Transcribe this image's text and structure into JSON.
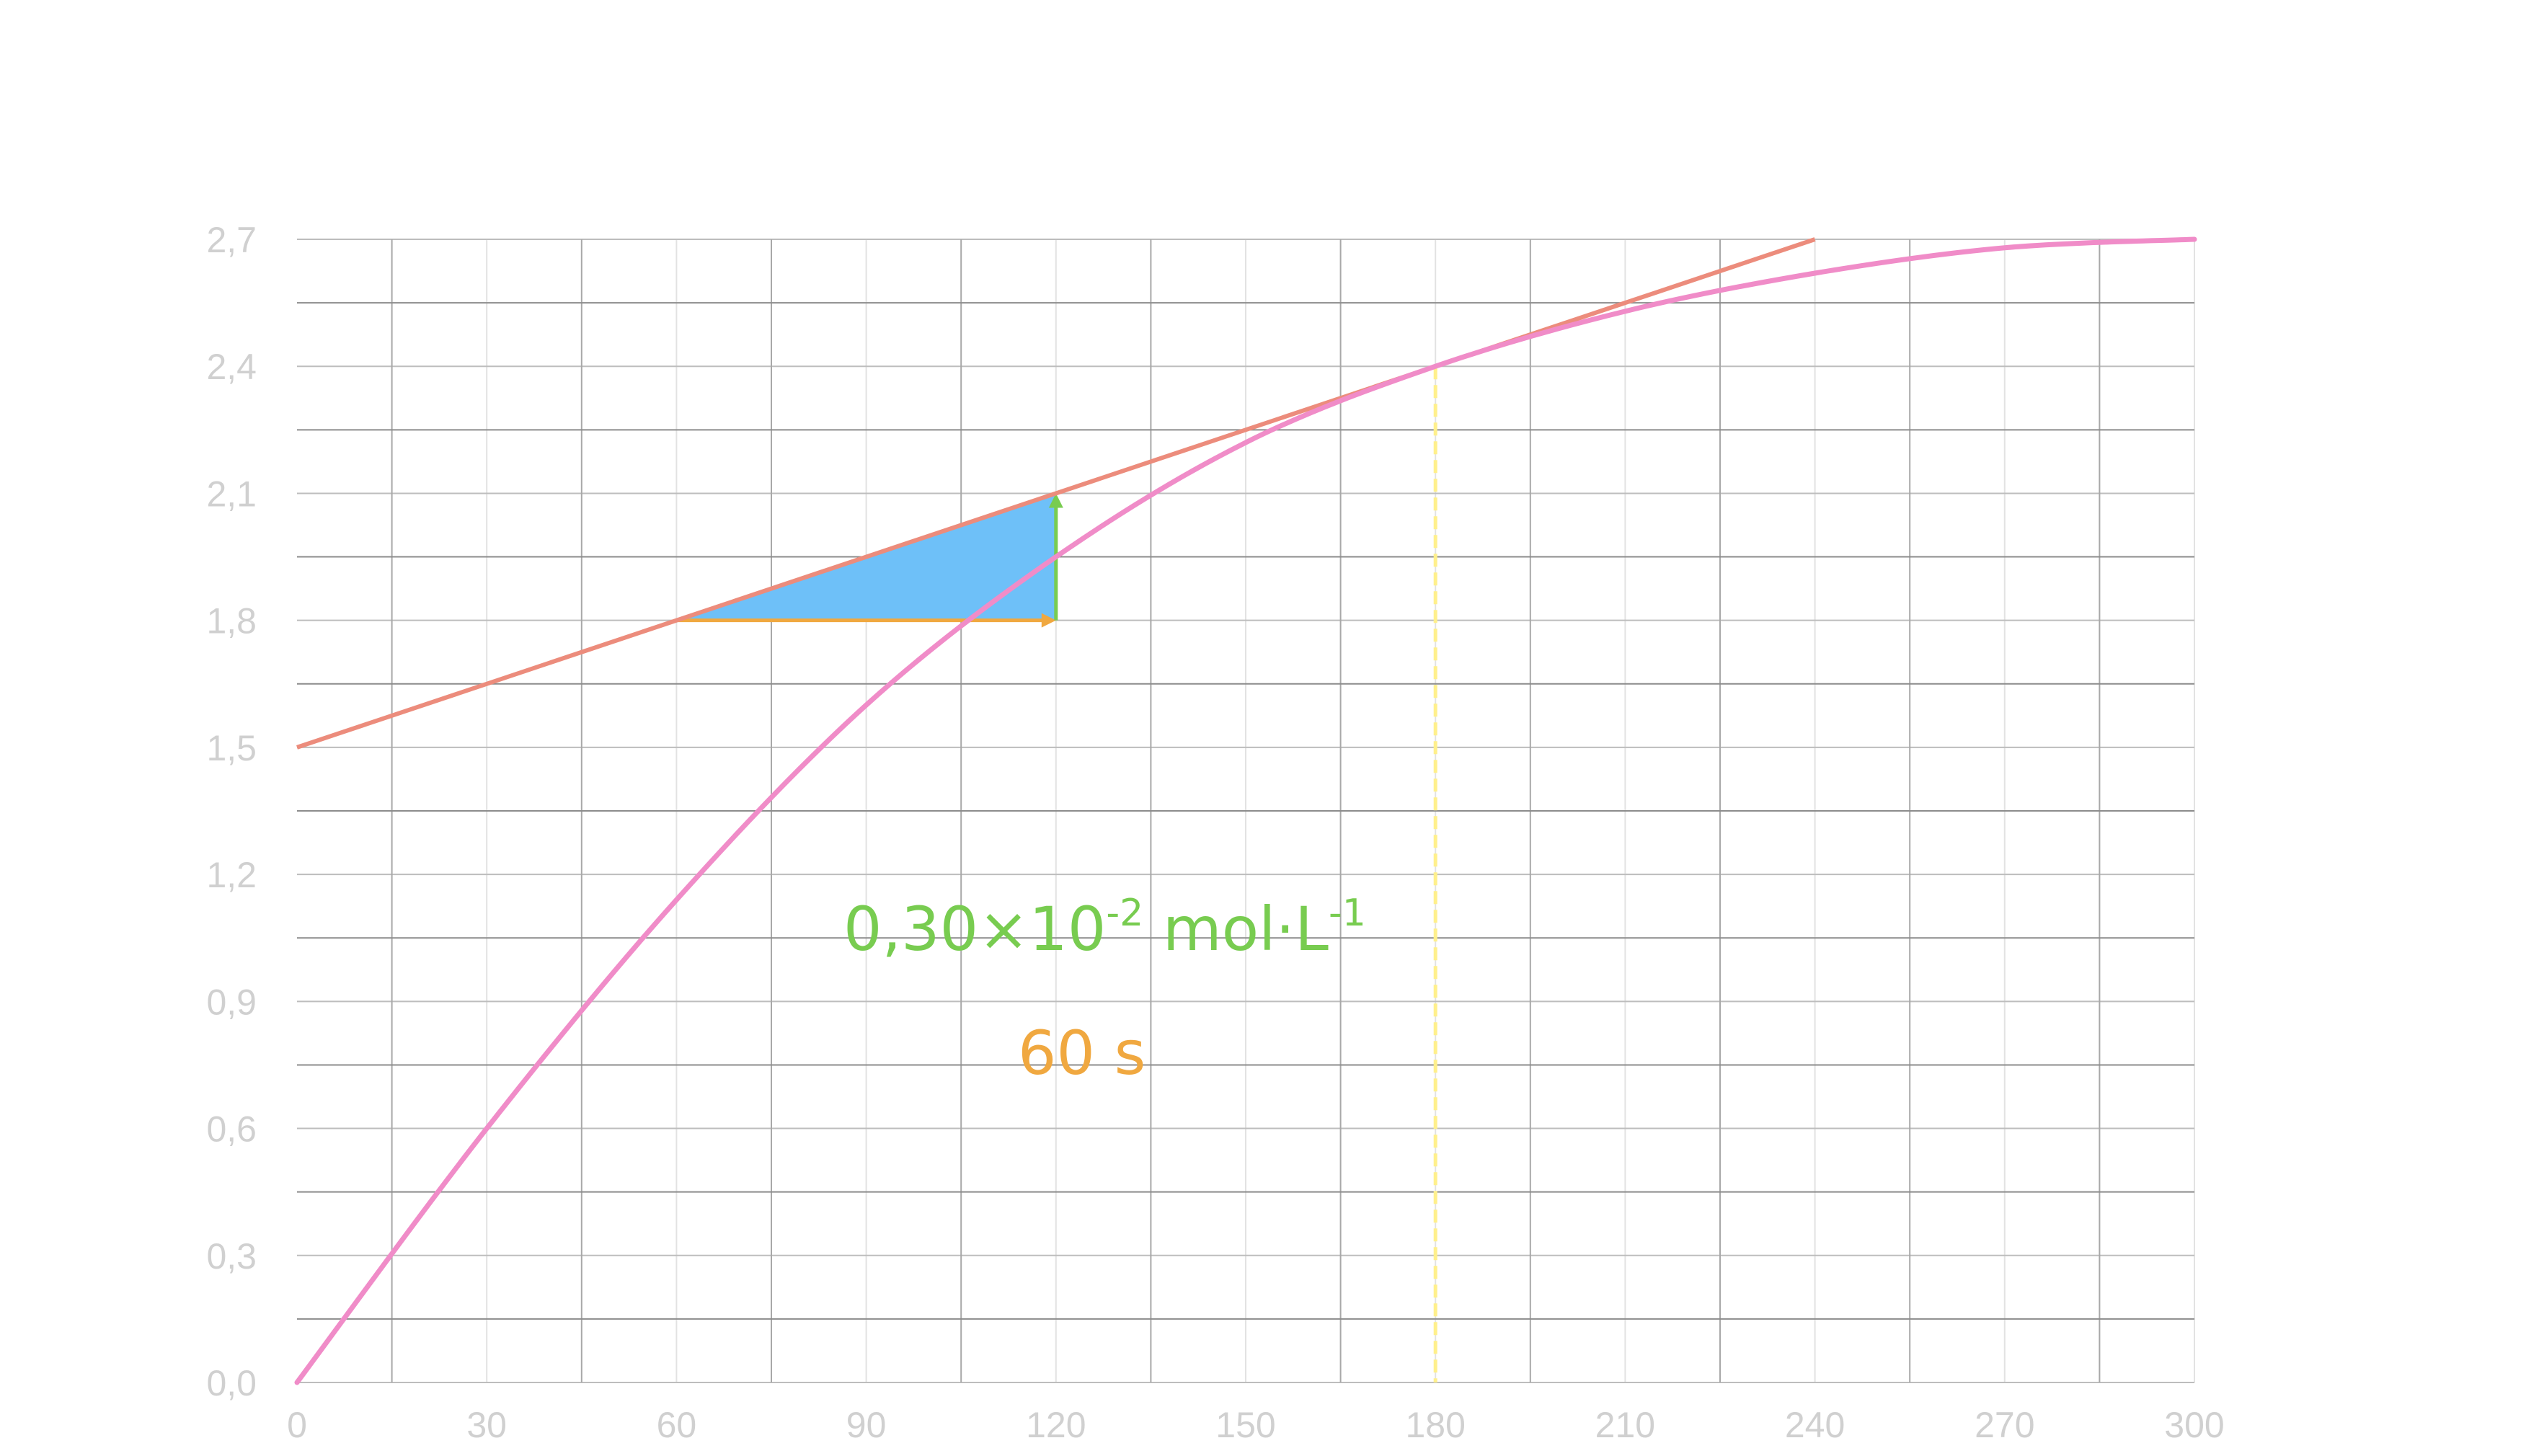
{
  "chart_data": {
    "type": "line",
    "x": [
      0,
      30,
      60,
      90,
      120,
      150,
      180,
      210,
      240,
      270,
      300
    ],
    "xlim": [
      0,
      300
    ],
    "ylim": [
      0,
      2.7
    ],
    "xticks": [
      "0",
      "30",
      "60",
      "90",
      "120",
      "150",
      "180",
      "210",
      "240",
      "270",
      "300"
    ],
    "yticks": [
      "0,0",
      "0,3",
      "0,6",
      "0,9",
      "1,2",
      "1,5",
      "1,8",
      "2,1",
      "2,4",
      "2,7"
    ],
    "grid": true,
    "series": [
      {
        "color": "#f08cc8",
        "x": [
          0,
          30,
          60,
          90,
          120,
          150,
          180,
          210,
          240,
          270,
          300
        ],
        "values": [
          0.0,
          0.6,
          1.14,
          1.6,
          1.95,
          2.22,
          2.4,
          2.53,
          2.62,
          2.68,
          2.7
        ]
      },
      {
        "color": "#ec8c7c",
        "x": [
          0,
          240
        ],
        "values": [
          1.5,
          2.7
        ]
      }
    ],
    "annotations": {
      "triangle": {
        "x0": 60,
        "x1": 120,
        "y0": 1.8,
        "y1": 2.1,
        "fill": "#6ec0f8"
      },
      "delta_y_color": "#78cc50",
      "delta_x_color": "#f0a840",
      "guide_x": 180,
      "guide_color": "#fff08c",
      "label_y": {
        "main": "0,30×10",
        "sup1": "-2",
        "unit": " mol·L",
        "sup2": "-1"
      },
      "label_x": "60 s"
    }
  }
}
